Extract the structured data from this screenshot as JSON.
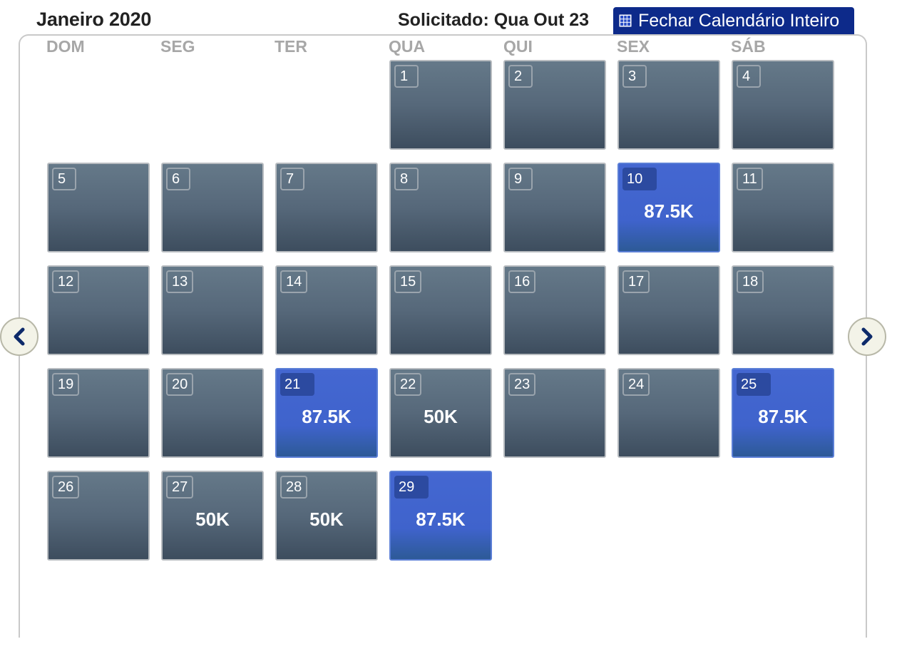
{
  "header": {
    "month_title": "Janeiro 2020",
    "requested": "Solicitado: Qua Out 23",
    "close_label": "Fechar Calendário Inteiro",
    "close_icon": "grid-icon"
  },
  "weekdays": [
    "DOM",
    "SEG",
    "TER",
    "QUA",
    "QUI",
    "SEX",
    "SÁB"
  ],
  "nav": {
    "prev_icon": "chevron-left-icon",
    "next_icon": "chevron-right-icon"
  },
  "colors": {
    "header_button": "#0d2a8a",
    "cell_default_top": "#657989",
    "cell_default_bottom": "#3d4d5e",
    "cell_selected": "#4467d1"
  },
  "days": [
    {
      "day": "1",
      "price": "",
      "selected": false
    },
    {
      "day": "2",
      "price": "",
      "selected": false
    },
    {
      "day": "3",
      "price": "",
      "selected": false
    },
    {
      "day": "4",
      "price": "",
      "selected": false
    },
    {
      "day": "5",
      "price": "",
      "selected": false
    },
    {
      "day": "6",
      "price": "",
      "selected": false
    },
    {
      "day": "7",
      "price": "",
      "selected": false
    },
    {
      "day": "8",
      "price": "",
      "selected": false
    },
    {
      "day": "9",
      "price": "",
      "selected": false
    },
    {
      "day": "10",
      "price": "87.5K",
      "selected": true
    },
    {
      "day": "11",
      "price": "",
      "selected": false
    },
    {
      "day": "12",
      "price": "",
      "selected": false
    },
    {
      "day": "13",
      "price": "",
      "selected": false
    },
    {
      "day": "14",
      "price": "",
      "selected": false
    },
    {
      "day": "15",
      "price": "",
      "selected": false
    },
    {
      "day": "16",
      "price": "",
      "selected": false
    },
    {
      "day": "17",
      "price": "",
      "selected": false
    },
    {
      "day": "18",
      "price": "",
      "selected": false
    },
    {
      "day": "19",
      "price": "",
      "selected": false
    },
    {
      "day": "20",
      "price": "",
      "selected": false
    },
    {
      "day": "21",
      "price": "87.5K",
      "selected": true
    },
    {
      "day": "22",
      "price": "50K",
      "selected": false
    },
    {
      "day": "23",
      "price": "",
      "selected": false
    },
    {
      "day": "24",
      "price": "",
      "selected": false
    },
    {
      "day": "25",
      "price": "87.5K",
      "selected": true
    },
    {
      "day": "26",
      "price": "",
      "selected": false
    },
    {
      "day": "27",
      "price": "50K",
      "selected": false
    },
    {
      "day": "28",
      "price": "50K",
      "selected": false
    },
    {
      "day": "29",
      "price": "87.5K",
      "selected": true
    }
  ]
}
